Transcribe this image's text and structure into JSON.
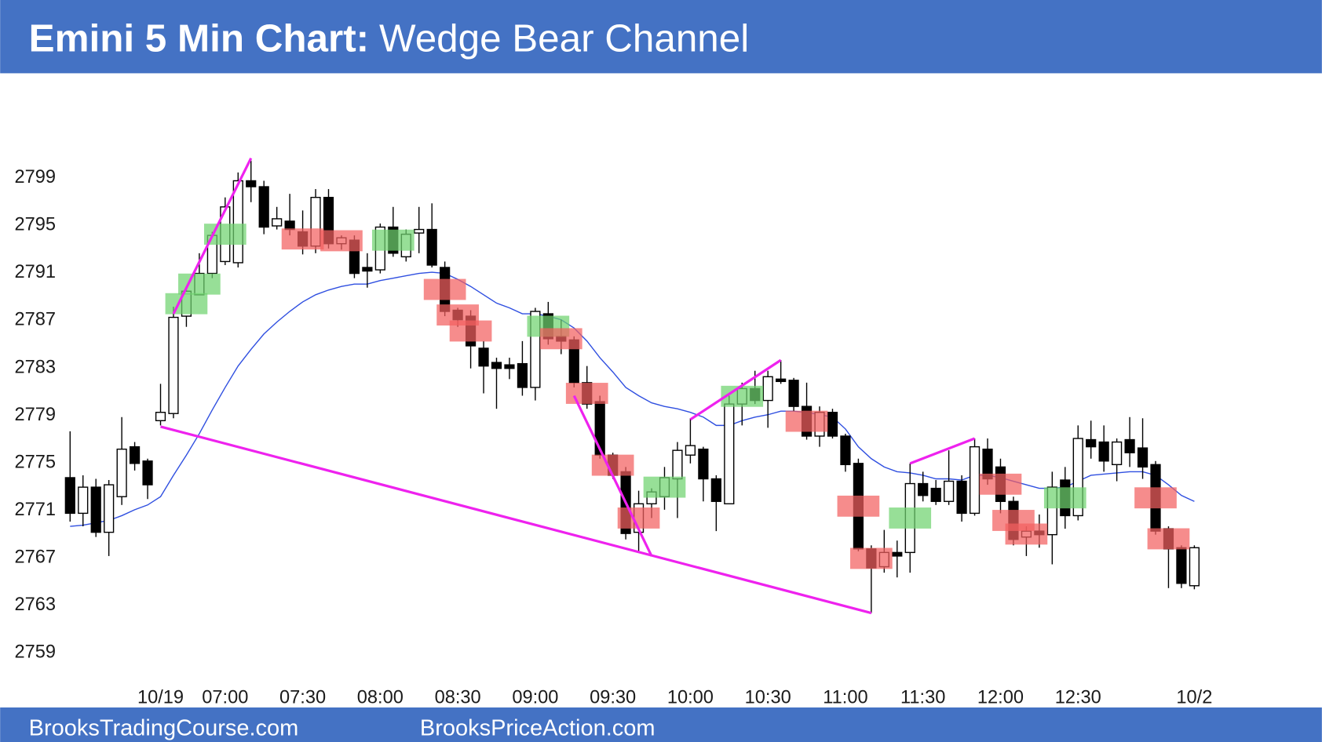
{
  "chart_data": {
    "type": "candlestick",
    "title": "Emini 5 Min Chart:",
    "subtitle": "Wedge Bear Channel",
    "categories": [
      null,
      null,
      null,
      null,
      null,
      null,
      null,
      "10/19",
      null,
      null,
      null,
      null,
      "07:00",
      null,
      null,
      null,
      null,
      null,
      "07:30",
      null,
      null,
      null,
      null,
      null,
      "08:00",
      null,
      null,
      null,
      null,
      null,
      "08:30",
      null,
      null,
      null,
      null,
      null,
      "09:00",
      null,
      null,
      null,
      null,
      null,
      "09:30",
      null,
      null,
      null,
      null,
      null,
      "10:00",
      null,
      null,
      null,
      null,
      null,
      "10:30",
      null,
      null,
      null,
      null,
      null,
      "11:00",
      null,
      null,
      null,
      null,
      null,
      "11:30",
      null,
      null,
      null,
      null,
      null,
      "12:00",
      null,
      null,
      null,
      null,
      null,
      "12:30",
      null,
      null,
      null,
      null,
      null,
      null,
      null,
      null,
      "10/2"
    ],
    "open": [
      2773.6,
      2770.6,
      2772.8,
      2769.0,
      2772.0,
      2776.2,
      2775.0,
      2778.4,
      2779.0,
      2787.2,
      2789.0,
      2790.8,
      2791.8,
      2791.7,
      2798.6,
      2798.1,
      2794.8,
      2795.2,
      2794.3,
      2793.1,
      2797.2,
      2793.3,
      2793.6,
      2791.3,
      2791.1,
      2794.7,
      2792.2,
      2794.2,
      2794.5,
      2791.3,
      2787.7,
      2787.2,
      2784.5,
      2783.3,
      2783.1,
      2783.2,
      2781.2,
      2787.4,
      2785.5,
      2785.2,
      2781.6,
      2780.0,
      2775.5,
      2774.1,
      2769.0,
      2771.4,
      2772.0,
      2773.5,
      2775.5,
      2776.0,
      2773.5,
      2771.4,
      2779.8,
      2781.1,
      2780.1,
      2781.9,
      2781.8,
      2779.6,
      2777.1,
      2779.1,
      2777.1,
      2774.8,
      2767.6,
      2766.1,
      2767.3,
      2767.3,
      2773.1,
      2772.7,
      2771.6,
      2773.3,
      2770.6,
      2776.0,
      2774.5,
      2771.6,
      2768.6,
      2769.1,
      2768.8,
      2773.4,
      2770.4,
      2776.8,
      2776.6,
      2774.7,
      2776.8,
      2776.1,
      2774.7,
      2769.3,
      2767.7,
      2764.5
    ],
    "high": [
      2777.5,
      2773.8,
      2773.5,
      2773.4,
      2778.7,
      2776.6,
      2775.2,
      2781.5,
      2788.0,
      2789.7,
      2792.5,
      2794.3,
      2797.2,
      2799.3,
      2800.3,
      2798.6,
      2796.4,
      2797.5,
      2796.1,
      2797.9,
      2797.9,
      2794.0,
      2794.0,
      2792.5,
      2795.0,
      2796.4,
      2794.5,
      2796.4,
      2796.7,
      2791.8,
      2787.9,
      2787.7,
      2785.1,
      2783.7,
      2783.7,
      2785.1,
      2787.9,
      2788.4,
      2786.9,
      2785.5,
      2783.0,
      2780.5,
      2775.7,
      2774.5,
      2772.5,
      2772.7,
      2774.5,
      2776.6,
      2778.6,
      2776.2,
      2773.8,
      2780.5,
      2781.6,
      2782.6,
      2782.6,
      2783.5,
      2782.0,
      2781.6,
      2779.6,
      2779.4,
      2777.3,
      2775.2,
      2767.9,
      2769.2,
      2768.3,
      2774.8,
      2774.1,
      2773.4,
      2775.9,
      2773.8,
      2776.9,
      2776.9,
      2775.2,
      2772.0,
      2769.5,
      2770.5,
      2774.1,
      2774.5,
      2778.0,
      2778.4,
      2778.0,
      2776.9,
      2778.7,
      2778.6,
      2775.0,
      2769.5,
      2767.9,
      2767.9
    ],
    "low": [
      2769.9,
      2769.5,
      2768.6,
      2767.0,
      2771.3,
      2774.2,
      2771.8,
      2778.0,
      2778.6,
      2786.3,
      2789.0,
      2790.4,
      2791.5,
      2791.3,
      2796.8,
      2794.1,
      2794.5,
      2794.0,
      2792.4,
      2792.5,
      2792.9,
      2792.8,
      2790.4,
      2789.6,
      2790.8,
      2792.2,
      2791.8,
      2792.5,
      2791.3,
      2787.2,
      2786.3,
      2782.8,
      2780.7,
      2779.4,
      2781.9,
      2780.5,
      2780.1,
      2784.8,
      2784.0,
      2781.2,
      2779.4,
      2775.2,
      2773.5,
      2768.4,
      2767.4,
      2770.2,
      2770.9,
      2770.2,
      2774.8,
      2771.6,
      2769.1,
      2771.4,
      2778.0,
      2779.8,
      2777.8,
      2781.5,
      2779.2,
      2776.8,
      2776.2,
      2776.9,
      2774.1,
      2767.4,
      2762.2,
      2765.6,
      2765.2,
      2765.6,
      2771.6,
      2771.3,
      2771.3,
      2769.9,
      2770.4,
      2773.0,
      2770.6,
      2767.9,
      2767.0,
      2767.7,
      2766.3,
      2769.3,
      2770.0,
      2775.2,
      2774.1,
      2773.3,
      2774.5,
      2773.5,
      2768.8,
      2764.3,
      2764.3,
      2764.2
    ],
    "close": [
      2770.6,
      2772.8,
      2769.0,
      2773.0,
      2776.0,
      2774.8,
      2773.0,
      2779.1,
      2787.1,
      2789.3,
      2790.8,
      2794.0,
      2796.4,
      2798.6,
      2798.1,
      2794.7,
      2795.4,
      2794.5,
      2793.1,
      2797.2,
      2793.3,
      2793.8,
      2790.8,
      2791.0,
      2794.7,
      2792.5,
      2794.1,
      2794.5,
      2791.5,
      2787.6,
      2786.9,
      2784.7,
      2783.0,
      2782.8,
      2782.8,
      2781.2,
      2787.6,
      2785.3,
      2785.1,
      2781.6,
      2779.8,
      2775.5,
      2773.8,
      2768.9,
      2771.4,
      2772.4,
      2773.6,
      2775.9,
      2776.3,
      2773.5,
      2771.6,
      2779.8,
      2781.1,
      2780.1,
      2782.1,
      2781.7,
      2779.6,
      2777.1,
      2779.1,
      2777.1,
      2774.7,
      2767.6,
      2766.0,
      2767.3,
      2767.0,
      2773.1,
      2772.1,
      2771.6,
      2773.3,
      2770.6,
      2776.2,
      2773.5,
      2771.6,
      2768.4,
      2769.1,
      2768.8,
      2772.8,
      2770.4,
      2776.9,
      2776.2,
      2775.0,
      2776.6,
      2775.7,
      2774.5,
      2769.1,
      2767.6,
      2764.7,
      2767.7
    ],
    "ema": [
      2769.5,
      2769.6,
      2769.8,
      2770.0,
      2770.4,
      2770.9,
      2771.3,
      2772.0,
      2773.8,
      2775.5,
      2777.3,
      2779.3,
      2781.2,
      2783.0,
      2784.4,
      2785.7,
      2786.7,
      2787.6,
      2788.4,
      2789.0,
      2789.4,
      2789.7,
      2789.9,
      2789.9,
      2790.2,
      2790.4,
      2790.6,
      2790.8,
      2790.9,
      2790.8,
      2790.3,
      2789.7,
      2789.0,
      2788.3,
      2787.9,
      2787.4,
      2787.4,
      2787.2,
      2786.9,
      2786.2,
      2785.1,
      2783.7,
      2782.5,
      2781.2,
      2780.5,
      2779.9,
      2779.6,
      2779.4,
      2779.1,
      2778.7,
      2778.0,
      2778.0,
      2778.4,
      2778.7,
      2778.9,
      2779.2,
      2779.2,
      2779.1,
      2778.9,
      2778.7,
      2777.7,
      2776.2,
      2775.2,
      2774.5,
      2774.1,
      2774.0,
      2773.8,
      2773.5,
      2773.5,
      2773.4,
      2773.8,
      2773.8,
      2773.6,
      2773.3,
      2773.0,
      2772.7,
      2772.7,
      2772.8,
      2773.3,
      2773.8,
      2773.9,
      2774.0,
      2774.1,
      2774.1,
      2773.8,
      2773.0,
      2772.1,
      2771.6
    ],
    "highlights": [
      null,
      null,
      null,
      null,
      null,
      null,
      null,
      null,
      null,
      "#6fd26f",
      "#6fd26f",
      null,
      "#6fd26f",
      null,
      null,
      null,
      null,
      null,
      "#f25f5f",
      null,
      null,
      "#f25f5f",
      null,
      null,
      null,
      "#6fd26f",
      null,
      null,
      null,
      "#f25f5f",
      "#f25f5f",
      "#f25f5f",
      null,
      null,
      null,
      null,
      null,
      "#6fd26f",
      "#f25f5f",
      null,
      "#f25f5f",
      null,
      "#f25f5f",
      null,
      "#f25f5f",
      null,
      "#6fd26f",
      null,
      null,
      null,
      null,
      null,
      "#6fd26f",
      null,
      null,
      null,
      null,
      "#f25f5f",
      null,
      null,
      null,
      "#f25f5f",
      "#f25f5f",
      null,
      null,
      "#6fd26f",
      null,
      null,
      null,
      null,
      null,
      null,
      "#f25f5f",
      "#f25f5f",
      "#f25f5f",
      null,
      null,
      "#6fd26f",
      null,
      null,
      null,
      null,
      null,
      null,
      "#f25f5f",
      "#f25f5f",
      null,
      null
    ],
    "trendlines": [
      {
        "x": [
          8,
          14
        ],
        "y": [
          2787.4,
          2800.5
        ]
      },
      {
        "x": [
          7,
          62
        ],
        "y": [
          2777.9,
          2762.2
        ]
      },
      {
        "x": [
          39,
          45
        ],
        "y": [
          2780.5,
          2767.0
        ]
      },
      {
        "x": [
          48,
          55
        ],
        "y": [
          2778.5,
          2783.5
        ]
      },
      {
        "x": [
          65,
          70
        ],
        "y": [
          2774.8,
          2776.9
        ]
      }
    ],
    "trendline_color": "#ee22ee",
    "ema_color": "#2f4fe0",
    "bull_color": "#ffffff",
    "bear_color": "#000000",
    "ylim": [
      2756,
      2807
    ],
    "yticks": [
      2759,
      2763,
      2767,
      2771,
      2775,
      2779,
      2783,
      2787,
      2791,
      2795,
      2799
    ]
  },
  "footer": [
    "BrooksTradingCourse.com",
    "BrooksPriceAction.com"
  ]
}
